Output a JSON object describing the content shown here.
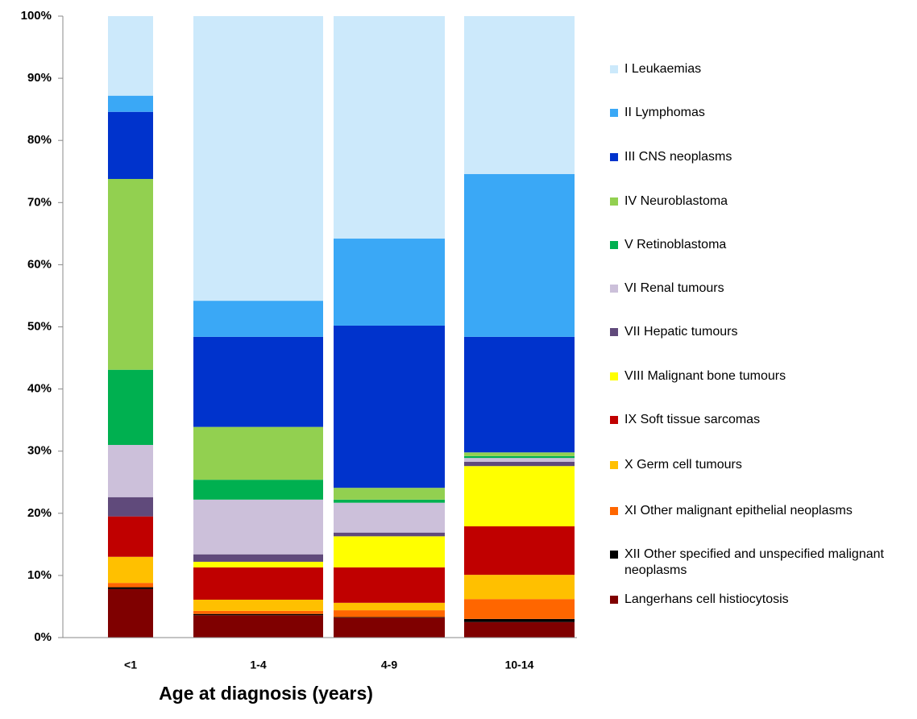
{
  "chart_data": {
    "type": "stacked-bar-100",
    "x_label": "Age at diagnosis (years)",
    "categories": [
      "<1",
      "1-4",
      "4-9",
      "10-14"
    ],
    "ylim": [
      0,
      100
    ],
    "yticks": [
      {
        "value": 0,
        "label": "0%"
      },
      {
        "value": 10,
        "label": "10%"
      },
      {
        "value": 20,
        "label": "20%"
      },
      {
        "value": 30,
        "label": "30%"
      },
      {
        "value": 40,
        "label": "40%"
      },
      {
        "value": 50,
        "label": "50%"
      },
      {
        "value": 60,
        "label": "60%"
      },
      {
        "value": 70,
        "label": "70%"
      },
      {
        "value": 80,
        "label": "80%"
      },
      {
        "value": 90,
        "label": "90%"
      },
      {
        "value": 100,
        "label": "100%"
      }
    ],
    "grid": false,
    "series": [
      {
        "name": "I Leukaemias",
        "color": "#cce9fb",
        "values": [
          12.8,
          45.8,
          35.8,
          25.4
        ]
      },
      {
        "name": "II Lymphomas",
        "color": "#3aa8f6",
        "values": [
          2.6,
          5.8,
          14.0,
          26.2
        ]
      },
      {
        "name": "III CNS neoplasms",
        "color": "#0033cc",
        "values": [
          10.8,
          14.5,
          26.1,
          18.6
        ]
      },
      {
        "name": "IV Neuroblastoma",
        "color": "#92d050",
        "values": [
          30.7,
          8.5,
          1.9,
          0.6
        ]
      },
      {
        "name": "V Retinoblastoma",
        "color": "#00b050",
        "values": [
          12.1,
          3.2,
          0.5,
          0.3
        ]
      },
      {
        "name": "VI Renal tumours",
        "color": "#ccc0da",
        "values": [
          8.4,
          8.8,
          4.8,
          0.6
        ]
      },
      {
        "name": "VII Hepatic tumours",
        "color": "#604a7b",
        "values": [
          3.1,
          1.2,
          0.6,
          0.7
        ]
      },
      {
        "name": "VIII Malignant bone tumours",
        "color": "#ffff00",
        "values": [
          0,
          0.9,
          5.0,
          9.7
        ]
      },
      {
        "name": "IX Soft tissue sarcomas",
        "color": "#c00000",
        "values": [
          6.5,
          5.2,
          5.7,
          7.8
        ]
      },
      {
        "name": "X Germ cell tumours",
        "color": "#ffc000",
        "values": [
          4.2,
          1.8,
          1.2,
          3.9
        ]
      },
      {
        "name": "XI Other malignant epithelial neoplasms",
        "color": "#ff6600",
        "values": [
          0.7,
          0.5,
          1.1,
          3.2
        ]
      },
      {
        "name": "XII Other specified and unspecified malignant neoplasms",
        "color": "#000000",
        "values": [
          0.3,
          0.2,
          0.1,
          0.5
        ]
      },
      {
        "name": "Langerhans cell histiocytosis",
        "color": "#7f0000",
        "values": [
          7.8,
          3.6,
          3.2,
          2.5
        ]
      }
    ]
  }
}
